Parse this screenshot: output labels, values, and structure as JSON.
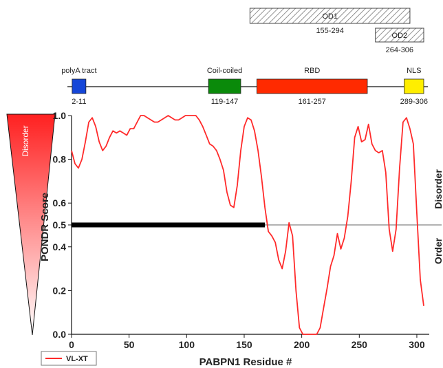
{
  "domains_track": [
    {
      "label": "polyA tract",
      "range": "2-11",
      "start": 2,
      "end": 11,
      "color": "#1546d8"
    },
    {
      "label": "Coil-coiled",
      "range": "119-147",
      "start": 119,
      "end": 147,
      "color": "#0a8a0a"
    },
    {
      "label": "RBD",
      "range": "161-257",
      "start": 161,
      "end": 257,
      "color": "#ff2a00"
    },
    {
      "label": "NLS",
      "range": "289-306",
      "start": 289,
      "end": 306,
      "color": "#ffee00"
    }
  ],
  "oligomerization_domains": [
    {
      "label": "OD1",
      "range": "155-294",
      "start": 155,
      "end": 294
    },
    {
      "label": "OD2",
      "range": "264-306",
      "start": 264,
      "end": 306
    }
  ],
  "triangle_label": "Disorder",
  "side_labels": {
    "upper": "Disorder",
    "lower": "Order"
  },
  "legend": {
    "label": "VL-XT",
    "color": "#ff2a2a"
  },
  "chart_data": {
    "type": "line",
    "xlabel": "PABPN1 Residue #",
    "ylabel": "PONDR Score",
    "xlim": [
      0,
      306
    ],
    "ylim": [
      0,
      1
    ],
    "xticks": [
      0,
      50,
      100,
      150,
      200,
      250,
      300
    ],
    "yticks": [
      0.0,
      0.2,
      0.4,
      0.5,
      0.6,
      0.8,
      1.0
    ],
    "threshold": 0.5,
    "disorder_bar": {
      "from": 0,
      "to": 168,
      "y": 0.5
    },
    "series": [
      {
        "name": "VL-XT",
        "color": "#ff2a2a",
        "x": [
          0,
          3,
          6,
          9,
          12,
          15,
          18,
          21,
          24,
          27,
          30,
          33,
          36,
          39,
          42,
          45,
          48,
          51,
          54,
          57,
          60,
          63,
          66,
          69,
          72,
          75,
          78,
          81,
          84,
          87,
          90,
          93,
          96,
          99,
          102,
          105,
          108,
          111,
          114,
          117,
          120,
          123,
          126,
          129,
          132,
          135,
          138,
          141,
          144,
          147,
          150,
          153,
          156,
          159,
          162,
          165,
          168,
          171,
          174,
          177,
          180,
          183,
          186,
          189,
          192,
          195,
          198,
          201,
          204,
          207,
          210,
          213,
          216,
          219,
          222,
          225,
          228,
          231,
          234,
          237,
          240,
          243,
          246,
          249,
          252,
          255,
          258,
          261,
          264,
          267,
          270,
          273,
          276,
          279,
          282,
          285,
          288,
          291,
          294,
          297,
          300,
          303,
          306
        ],
        "y": [
          0.84,
          0.78,
          0.76,
          0.8,
          0.88,
          0.97,
          0.99,
          0.95,
          0.88,
          0.84,
          0.86,
          0.9,
          0.93,
          0.92,
          0.93,
          0.92,
          0.91,
          0.94,
          0.94,
          0.97,
          1.0,
          1.0,
          0.99,
          0.98,
          0.97,
          0.97,
          0.98,
          0.99,
          1.0,
          0.99,
          0.98,
          0.98,
          0.99,
          1.0,
          1.0,
          1.0,
          1.0,
          0.98,
          0.95,
          0.91,
          0.87,
          0.86,
          0.84,
          0.8,
          0.75,
          0.65,
          0.59,
          0.58,
          0.68,
          0.84,
          0.95,
          0.99,
          0.98,
          0.93,
          0.84,
          0.72,
          0.58,
          0.47,
          0.45,
          0.42,
          0.34,
          0.3,
          0.38,
          0.51,
          0.45,
          0.2,
          0.03,
          0.0,
          0.0,
          0.0,
          0.0,
          0.0,
          0.03,
          0.12,
          0.21,
          0.31,
          0.36,
          0.46,
          0.39,
          0.44,
          0.54,
          0.7,
          0.9,
          0.95,
          0.88,
          0.89,
          0.96,
          0.87,
          0.84,
          0.83,
          0.84,
          0.74,
          0.48,
          0.38,
          0.48,
          0.76,
          0.97,
          0.99,
          0.94,
          0.87,
          0.55,
          0.25,
          0.13
        ]
      }
    ]
  }
}
